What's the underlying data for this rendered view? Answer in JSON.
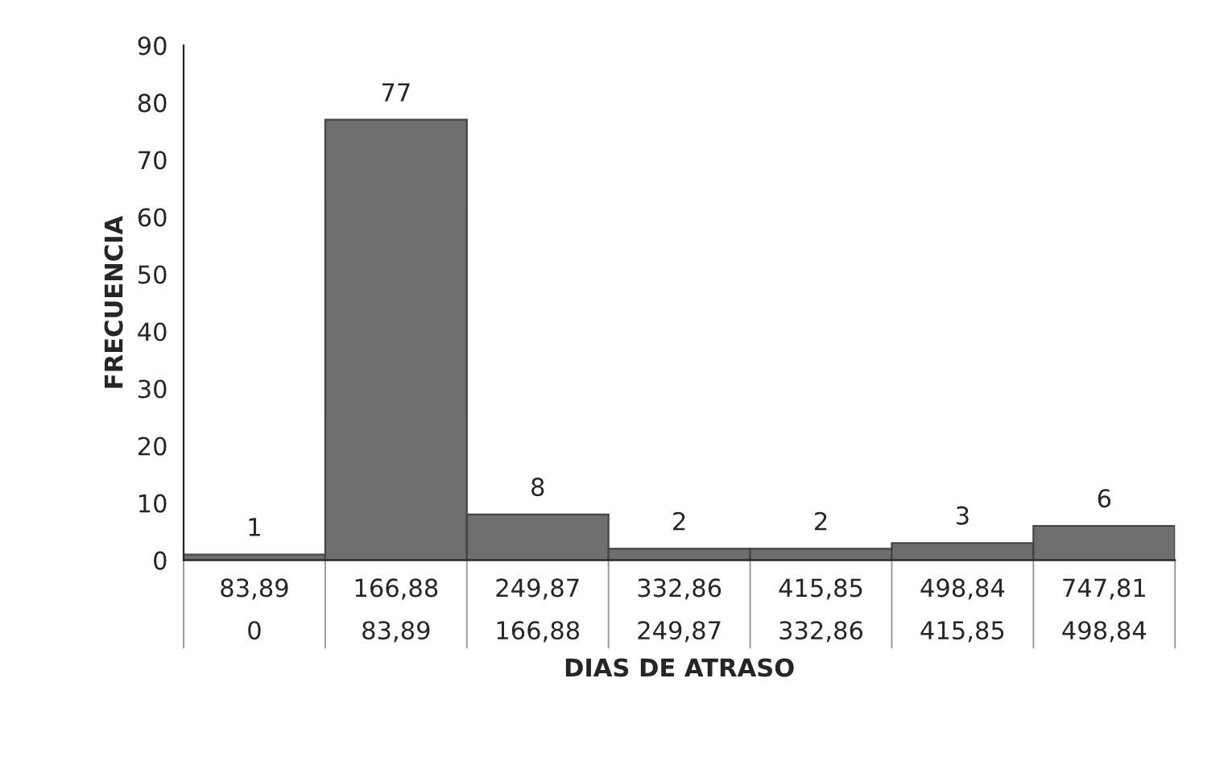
{
  "chart_data": {
    "type": "bar",
    "xlabel": "DIAS DE ATRASO",
    "ylabel": "FRECUENCIA",
    "categories": [
      "83,89\n0",
      "166,88\n83,89",
      "249,87\n166,88",
      "332,86\n249,87",
      "415,85\n332,86",
      "498,84\n415,85",
      "747,81\n498,84"
    ],
    "values": [
      1,
      77,
      8,
      2,
      2,
      3,
      6
    ],
    "color": "#6e6e6e",
    "ylim": [
      0,
      90
    ],
    "yticks": [
      0,
      10,
      20,
      30,
      40,
      50,
      60,
      70,
      80,
      90
    ],
    "grid": false,
    "data_labels": true
  }
}
